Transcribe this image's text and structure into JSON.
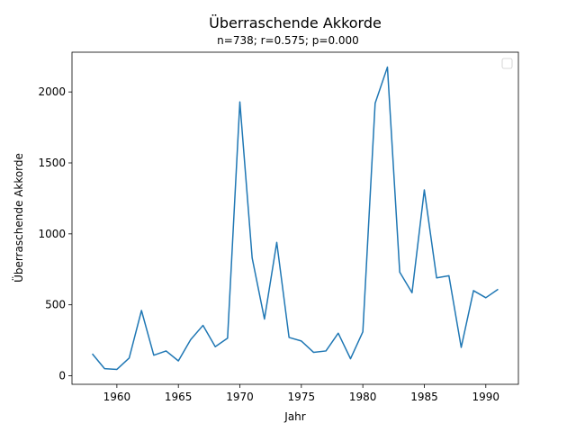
{
  "chart_data": {
    "type": "line",
    "title": "Überraschende Akkorde",
    "subtitle": "n=738; r=0.575; p=0.000",
    "xlabel": "Jahr",
    "ylabel": "Überraschende Akkorde",
    "xlim": [
      1956.35,
      1992.65
    ],
    "ylim": [
      -60,
      2280
    ],
    "xticks": [
      1960,
      1965,
      1970,
      1975,
      1980,
      1985,
      1990
    ],
    "yticks": [
      0,
      500,
      1000,
      1500,
      2000
    ],
    "grid": false,
    "legend": "top-right (empty)",
    "series": [
      {
        "color": "#1f77b4",
        "x": [
          1958,
          1959,
          1960,
          1961,
          1962,
          1963,
          1964,
          1965,
          1966,
          1967,
          1968,
          1969,
          1970,
          1971,
          1972,
          1973,
          1974,
          1975,
          1976,
          1977,
          1978,
          1979,
          1980,
          1981,
          1982,
          1983,
          1984,
          1985,
          1986,
          1987,
          1988,
          1989,
          1990,
          1991
        ],
        "values": [
          155,
          50,
          45,
          125,
          460,
          145,
          175,
          105,
          255,
          355,
          205,
          265,
          1930,
          830,
          400,
          940,
          270,
          245,
          165,
          175,
          300,
          120,
          310,
          1920,
          2175,
          730,
          585,
          1310,
          690,
          705,
          200,
          600,
          550,
          610
        ]
      }
    ]
  }
}
